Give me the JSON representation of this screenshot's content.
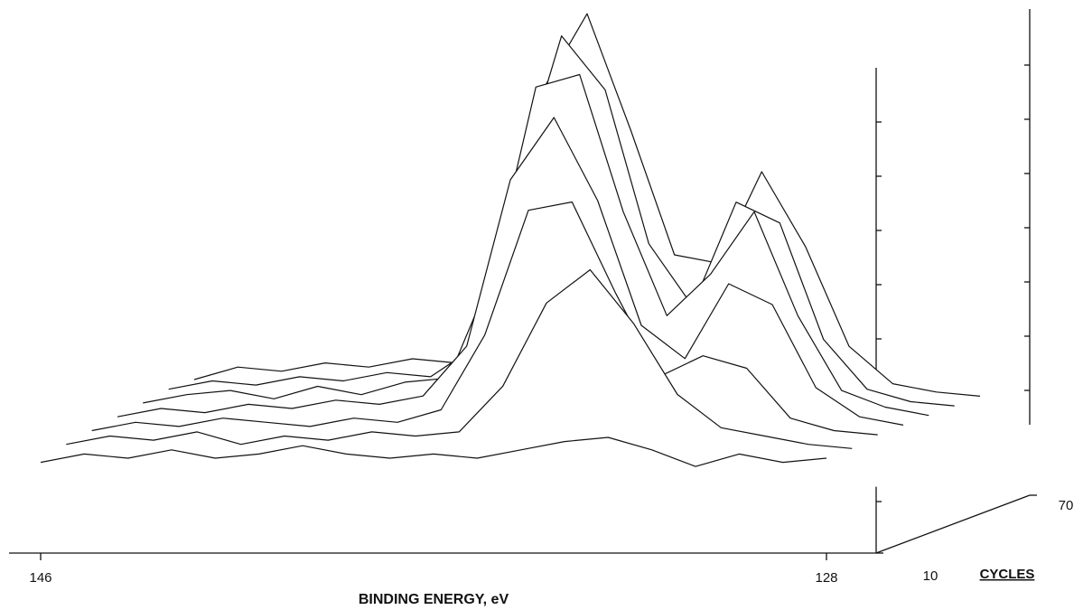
{
  "chart_data": {
    "type": "waterfall",
    "xlabel": "BINDING ENERGY, eV",
    "zlabel": "CYCLES",
    "x": [
      146,
      145,
      144,
      143,
      142,
      141,
      140,
      139,
      138,
      137,
      136,
      135,
      134,
      133,
      132,
      131,
      130,
      129,
      128
    ],
    "xlim": [
      146,
      128
    ],
    "xticks": [
      146,
      128
    ],
    "zlim": [
      10,
      70
    ],
    "zticks": [
      10,
      70
    ],
    "ylim": [
      0,
      100
    ],
    "color": "#111111",
    "series": [
      {
        "z": 70,
        "values": [
          10,
          13,
          12,
          14,
          13,
          15,
          14,
          30,
          80,
          98,
          70,
          40,
          38,
          60,
          42,
          18,
          9,
          7,
          6
        ]
      },
      {
        "z": 60,
        "values": [
          10,
          12,
          11,
          13,
          12,
          14,
          13,
          20,
          60,
          95,
          82,
          45,
          30,
          55,
          50,
          22,
          10,
          7,
          6
        ]
      },
      {
        "z": 50,
        "values": [
          9,
          11,
          12,
          10,
          13,
          11,
          14,
          15,
          40,
          85,
          88,
          55,
          30,
          40,
          55,
          30,
          12,
          8,
          6
        ]
      },
      {
        "z": 40,
        "values": [
          8,
          10,
          9,
          11,
          10,
          12,
          11,
          13,
          25,
          65,
          80,
          60,
          30,
          22,
          40,
          35,
          15,
          8,
          6
        ]
      },
      {
        "z": 30,
        "values": [
          7,
          9,
          8,
          10,
          9,
          8,
          10,
          9,
          12,
          30,
          60,
          62,
          40,
          20,
          25,
          22,
          10,
          7,
          6
        ]
      },
      {
        "z": 20,
        "values": [
          6,
          8,
          7,
          9,
          6,
          8,
          7,
          9,
          8,
          9,
          20,
          40,
          48,
          35,
          18,
          10,
          8,
          6,
          5
        ]
      },
      {
        "z": 10,
        "values": [
          4,
          6,
          5,
          7,
          5,
          6,
          8,
          6,
          5,
          6,
          5,
          7,
          9,
          10,
          7,
          3,
          6,
          4,
          5
        ]
      }
    ]
  }
}
